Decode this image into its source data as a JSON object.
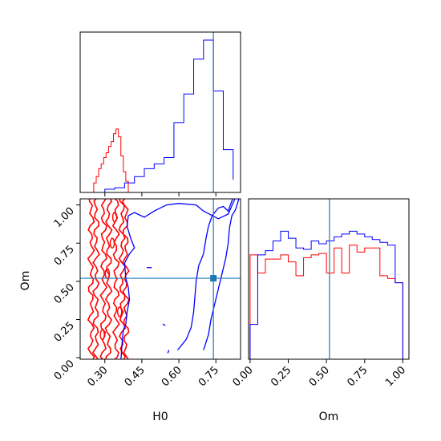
{
  "chart_data": {
    "type": "corner",
    "parameters": [
      "H0",
      "Om"
    ],
    "truths": {
      "H0": 0.74,
      "Om": 0.52
    },
    "grid": false,
    "colors": {
      "series_a": "#ff0000",
      "series_b": "#0000ff",
      "truth": "#1f77b4"
    },
    "axes": {
      "H0": {
        "label": "H0",
        "ticks": [
          "0.30",
          "0.45",
          "0.60",
          "0.75"
        ],
        "tick_values": [
          0.3,
          0.45,
          0.6,
          0.75
        ],
        "range": [
          0.2,
          0.85
        ]
      },
      "Om": {
        "label": "Om",
        "ticks": [
          "0.00",
          "0.25",
          "0.50",
          "0.75",
          "1.00"
        ],
        "tick_values": [
          0.0,
          0.25,
          0.5,
          0.75,
          1.0
        ],
        "range": [
          -0.01,
          1.04
        ]
      }
    },
    "panels": [
      {
        "name": "H0 marginal",
        "type": "histogram",
        "series": [
          {
            "key": "series_a",
            "bin_edges": [
              0.255,
              0.265,
              0.275,
              0.285,
              0.295,
              0.305,
              0.315,
              0.325,
              0.335,
              0.345,
              0.355,
              0.365,
              0.375,
              0.385,
              0.395
            ],
            "values": [
              0.06,
              0.1,
              0.15,
              0.18,
              0.22,
              0.25,
              0.29,
              0.32,
              0.37,
              0.4,
              0.35,
              0.23,
              0.13,
              0.07
            ]
          },
          {
            "key": "series_b",
            "bin_edges": [
              0.3,
              0.34,
              0.38,
              0.42,
              0.46,
              0.5,
              0.54,
              0.58,
              0.62,
              0.66,
              0.7,
              0.74,
              0.78,
              0.82
            ],
            "values": [
              0.02,
              0.03,
              0.06,
              0.1,
              0.15,
              0.18,
              0.22,
              0.44,
              0.62,
              0.84,
              0.96,
              0.64,
              0.27,
              0.08
            ]
          }
        ]
      },
      {
        "name": "H0 vs Om",
        "type": "contour",
        "series": [
          {
            "key": "series_a",
            "columns_H0": [
              0.245,
              0.265,
              0.295,
              0.315,
              0.345,
              0.37,
              0.385
            ]
          },
          {
            "key": "series_b",
            "regions": "outer contour from H0 0.35-0.84, inner band near H0 0.66-0.80"
          }
        ]
      },
      {
        "name": "Om marginal",
        "type": "histogram",
        "series": [
          {
            "key": "series_a",
            "bin_edges": [
              0.0,
              0.05,
              0.1,
              0.15,
              0.2,
              0.25,
              0.3,
              0.35,
              0.4,
              0.45,
              0.5,
              0.55,
              0.6,
              0.65,
              0.7,
              0.75,
              0.8,
              0.85,
              0.9,
              0.95,
              1.0
            ],
            "values": [
              0.75,
              0.62,
              0.72,
              0.72,
              0.75,
              0.7,
              0.6,
              0.73,
              0.75,
              0.76,
              0.62,
              0.8,
              0.62,
              0.82,
              0.77,
              0.8,
              0.8,
              0.6,
              0.58,
              0.55
            ]
          },
          {
            "key": "series_b",
            "bin_edges": [
              0.0,
              0.05,
              0.1,
              0.15,
              0.2,
              0.25,
              0.3,
              0.35,
              0.4,
              0.45,
              0.5,
              0.55,
              0.6,
              0.65,
              0.7,
              0.75,
              0.8,
              0.85,
              0.9,
              0.95,
              1.0
            ],
            "values": [
              0.25,
              0.75,
              0.78,
              0.85,
              0.92,
              0.87,
              0.8,
              0.79,
              0.85,
              0.83,
              0.85,
              0.88,
              0.9,
              0.92,
              0.9,
              0.88,
              0.86,
              0.84,
              0.82,
              0.55
            ]
          }
        ]
      }
    ]
  }
}
